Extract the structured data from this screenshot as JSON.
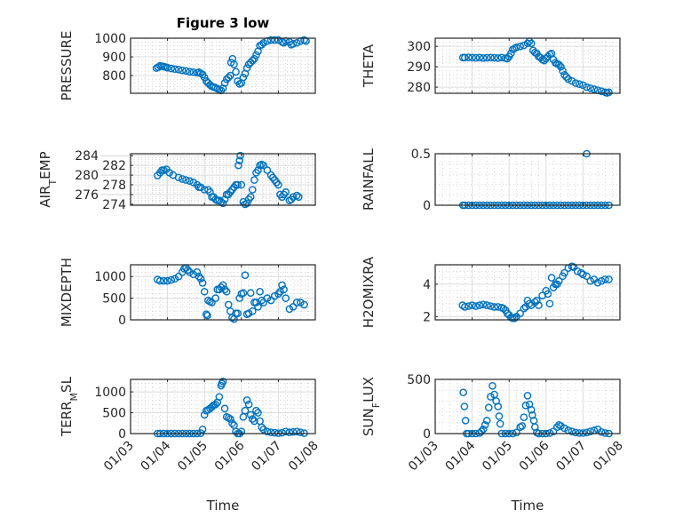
{
  "chart_data": {
    "type": "scatter",
    "title": "Figure 3 low",
    "xlabel": "Time",
    "x_unit": "day of month (January)",
    "xlim": [
      3,
      8
    ],
    "xticks": [
      3,
      4,
      5,
      6,
      7,
      8
    ],
    "xtick_labels": [
      "01/03",
      "01/04",
      "01/05",
      "01/06",
      "01/07",
      "01/08"
    ],
    "grid": "on (major + minor)",
    "marker_color": "#0072BD",
    "panels": [
      {
        "ylabel": "PRESSURE",
        "ylim": [
          705,
          1000
        ],
        "yticks": [
          800,
          900,
          1000
        ],
        "x": [
          3.7,
          3.75,
          3.8,
          3.85,
          3.9,
          3.95,
          4.0,
          4.1,
          4.2,
          4.3,
          4.4,
          4.5,
          4.6,
          4.7,
          4.8,
          4.85,
          4.9,
          4.95,
          5.0,
          5.05,
          5.1,
          5.15,
          5.2,
          5.25,
          5.3,
          5.35,
          5.4,
          5.45,
          5.5,
          5.55,
          5.6,
          5.65,
          5.7,
          5.72,
          5.76,
          5.8,
          5.85,
          5.9,
          5.95,
          6.0,
          6.05,
          6.1,
          6.15,
          6.2,
          6.25,
          6.3,
          6.35,
          6.4,
          6.45,
          6.5,
          6.55,
          6.6,
          6.7,
          6.8,
          6.9,
          7.0,
          7.1,
          7.15,
          7.2,
          7.3,
          7.35,
          7.4,
          7.5,
          7.6,
          7.7,
          7.75
        ],
        "y": [
          840,
          845,
          852,
          850,
          848,
          845,
          842,
          838,
          835,
          832,
          828,
          825,
          820,
          818,
          815,
          818,
          812,
          805,
          790,
          770,
          760,
          750,
          742,
          738,
          735,
          730,
          725,
          720,
          732,
          760,
          780,
          790,
          800,
          870,
          890,
          860,
          820,
          770,
          755,
          760,
          790,
          810,
          840,
          860,
          870,
          880,
          890,
          910,
          930,
          960,
          965,
          975,
          985,
          990,
          990,
          990,
          980,
          975,
          985,
          980,
          965,
          970,
          975,
          985,
          990,
          985
        ]
      },
      {
        "ylabel": "THETA",
        "ylim": [
          277,
          304
        ],
        "yticks": [
          280,
          290,
          300
        ],
        "x": [
          3.75,
          3.8,
          3.9,
          4.0,
          4.1,
          4.2,
          4.3,
          4.4,
          4.5,
          4.6,
          4.7,
          4.8,
          4.9,
          4.95,
          5.0,
          5.05,
          5.1,
          5.15,
          5.2,
          5.3,
          5.4,
          5.5,
          5.55,
          5.6,
          5.65,
          5.7,
          5.75,
          5.8,
          5.85,
          5.9,
          5.95,
          6.0,
          6.05,
          6.1,
          6.15,
          6.2,
          6.25,
          6.3,
          6.35,
          6.4,
          6.45,
          6.5,
          6.55,
          6.6,
          6.7,
          6.8,
          6.9,
          7.0,
          7.1,
          7.2,
          7.3,
          7.4,
          7.5,
          7.6,
          7.65,
          7.7
        ],
        "y": [
          294.5,
          294.5,
          294.6,
          294.5,
          294.4,
          294.5,
          294.3,
          294.4,
          294.5,
          294.4,
          294.3,
          294.5,
          294.2,
          294,
          295,
          296.5,
          298.5,
          299,
          299.5,
          300,
          300.5,
          301.5,
          302.5,
          301.5,
          298,
          297,
          296.5,
          295,
          294.5,
          293.5,
          293,
          294,
          295,
          296,
          296.5,
          293.5,
          292,
          291.5,
          291,
          290,
          288,
          286,
          285,
          284,
          283,
          282,
          281.5,
          281,
          280,
          279.5,
          279,
          278.5,
          278,
          277.5,
          277.2,
          277.5
        ]
      },
      {
        "ylabel": "AIR_TEMP",
        "ylim": [
          273.8,
          284.4
        ],
        "yticks": [
          274,
          276,
          278,
          280,
          282,
          284
        ],
        "x": [
          3.73,
          3.8,
          3.85,
          3.9,
          3.97,
          4.05,
          4.15,
          4.3,
          4.4,
          4.5,
          4.6,
          4.7,
          4.8,
          4.85,
          4.9,
          5.0,
          5.1,
          5.15,
          5.2,
          5.25,
          5.3,
          5.35,
          5.4,
          5.45,
          5.5,
          5.55,
          5.6,
          5.65,
          5.7,
          5.75,
          5.8,
          5.85,
          5.9,
          5.92,
          5.95,
          5.97,
          6.0,
          6.05,
          6.1,
          6.15,
          6.2,
          6.25,
          6.3,
          6.35,
          6.4,
          6.45,
          6.5,
          6.55,
          6.6,
          6.7,
          6.8,
          6.85,
          6.9,
          6.95,
          7.0,
          7.05,
          7.1,
          7.15,
          7.2,
          7.3,
          7.35,
          7.4,
          7.5,
          7.55
        ],
        "y": [
          279.9,
          280.5,
          281,
          281,
          281.2,
          280.5,
          280,
          279.5,
          279.2,
          279,
          278.8,
          278.5,
          278,
          277.5,
          277.5,
          277,
          277,
          276.5,
          275.5,
          275.5,
          275,
          274.8,
          274.8,
          274.5,
          274.2,
          275,
          276,
          276,
          276.5,
          277,
          277.5,
          278,
          278,
          282,
          283,
          284,
          278,
          274.5,
          274,
          274.2,
          275,
          275.5,
          277,
          279,
          280.5,
          281,
          282,
          282.2,
          282,
          281,
          280,
          279.5,
          279,
          278.5,
          278,
          276,
          275.5,
          276,
          276.5,
          274.8,
          275,
          275.5,
          275.8,
          275.5
        ]
      },
      {
        "ylabel": "RAINFALL",
        "ylim": [
          0,
          0.5
        ],
        "yticks": [
          0,
          0.5
        ],
        "x": [
          3.75,
          3.8,
          3.9,
          4.0,
          4.1,
          4.2,
          4.3,
          4.4,
          4.5,
          4.6,
          4.7,
          4.8,
          4.9,
          5.0,
          5.1,
          5.2,
          5.3,
          5.4,
          5.5,
          5.6,
          5.7,
          5.8,
          5.9,
          6.0,
          6.1,
          6.2,
          6.3,
          6.4,
          6.5,
          6.6,
          6.7,
          6.8,
          6.9,
          7.0,
          7.1,
          7.1,
          7.2,
          7.3,
          7.4,
          7.5,
          7.6,
          7.7
        ],
        "y": [
          0,
          0,
          0,
          0,
          0,
          0,
          0,
          0,
          0,
          0,
          0,
          0,
          0,
          0,
          0,
          0,
          0,
          0,
          0,
          0,
          0,
          0,
          0,
          0,
          0,
          0,
          0,
          0,
          0,
          0,
          0,
          0,
          0,
          0,
          0,
          0.5,
          0,
          0,
          0,
          0,
          0,
          0
        ]
      },
      {
        "ylabel": "MIXDEPTH",
        "ylim": [
          0,
          1270
        ],
        "yticks": [
          0,
          500,
          1000
        ],
        "x": [
          3.73,
          3.8,
          3.9,
          4.0,
          4.1,
          4.2,
          4.3,
          4.4,
          4.45,
          4.5,
          4.55,
          4.6,
          4.7,
          4.8,
          4.85,
          4.9,
          4.95,
          5.0,
          5.05,
          5.08,
          5.1,
          5.15,
          5.2,
          5.3,
          5.35,
          5.4,
          5.45,
          5.5,
          5.55,
          5.6,
          5.65,
          5.7,
          5.75,
          5.8,
          5.85,
          5.9,
          5.95,
          6.0,
          6.05,
          6.1,
          6.15,
          6.2,
          6.25,
          6.3,
          6.35,
          6.4,
          6.45,
          6.5,
          6.55,
          6.6,
          6.7,
          6.8,
          6.9,
          7.0,
          7.05,
          7.1,
          7.15,
          7.2,
          7.3,
          7.4,
          7.5,
          7.6,
          7.7
        ],
        "y": [
          930,
          900,
          900,
          900,
          920,
          950,
          1000,
          1100,
          1180,
          1200,
          1150,
          1100,
          1050,
          1100,
          1000,
          950,
          850,
          650,
          130,
          100,
          450,
          420,
          400,
          500,
          700,
          700,
          750,
          800,
          700,
          650,
          350,
          200,
          50,
          20,
          150,
          150,
          500,
          600,
          620,
          1030,
          130,
          150,
          620,
          200,
          400,
          400,
          300,
          650,
          450,
          400,
          500,
          450,
          550,
          600,
          650,
          800,
          700,
          500,
          250,
          300,
          400,
          400,
          350
        ]
      },
      {
        "ylabel": "H2OMIXRA",
        "ylim": [
          1.8,
          5.2
        ],
        "yticks": [
          2,
          4
        ],
        "x": [
          3.74,
          3.8,
          3.9,
          4.0,
          4.1,
          4.2,
          4.3,
          4.4,
          4.5,
          4.6,
          4.7,
          4.8,
          4.85,
          4.9,
          4.95,
          5.0,
          5.05,
          5.1,
          5.15,
          5.2,
          5.3,
          5.4,
          5.45,
          5.5,
          5.55,
          5.6,
          5.7,
          5.75,
          5.8,
          5.9,
          6.0,
          6.05,
          6.1,
          6.15,
          6.2,
          6.25,
          6.3,
          6.35,
          6.45,
          6.5,
          6.6,
          6.7,
          6.75,
          6.85,
          6.95,
          7.0,
          7.1,
          7.2,
          7.3,
          7.4,
          7.5,
          7.6,
          7.7
        ],
        "y": [
          2.7,
          2.6,
          2.65,
          2.7,
          2.65,
          2.7,
          2.75,
          2.7,
          2.65,
          2.6,
          2.6,
          2.55,
          2.5,
          2.4,
          2.2,
          2.1,
          1.95,
          1.9,
          1.9,
          2.0,
          2.2,
          2.5,
          2.6,
          3.0,
          2.8,
          2.7,
          2.9,
          3.0,
          2.7,
          3.3,
          3.6,
          3.4,
          2.8,
          4.4,
          3.8,
          4.0,
          4.0,
          4.2,
          4.5,
          4.7,
          5.0,
          5.1,
          5.05,
          4.8,
          4.7,
          4.6,
          4.5,
          4.2,
          4.3,
          4.1,
          4.2,
          4.3,
          4.3
        ]
      },
      {
        "ylabel": "TERR_MSL",
        "ylim": [
          0,
          1300
        ],
        "yticks": [
          0,
          500,
          1000
        ],
        "x": [
          3.73,
          3.8,
          3.9,
          4.0,
          4.1,
          4.2,
          4.3,
          4.4,
          4.5,
          4.6,
          4.7,
          4.8,
          4.9,
          4.95,
          5.0,
          5.05,
          5.1,
          5.15,
          5.2,
          5.25,
          5.3,
          5.35,
          5.4,
          5.45,
          5.47,
          5.5,
          5.55,
          5.6,
          5.65,
          5.7,
          5.75,
          5.8,
          5.85,
          5.9,
          5.95,
          6.0,
          6.05,
          6.1,
          6.15,
          6.2,
          6.25,
          6.3,
          6.35,
          6.4,
          6.45,
          6.5,
          6.55,
          6.6,
          6.7,
          6.8,
          6.9,
          7.0,
          7.1,
          7.2,
          7.3,
          7.4,
          7.5,
          7.6,
          7.7
        ],
        "y": [
          0,
          0,
          0,
          0,
          0,
          0,
          0,
          0,
          0,
          0,
          0,
          0,
          10,
          100,
          450,
          550,
          570,
          600,
          640,
          680,
          700,
          750,
          880,
          1150,
          1200,
          1250,
          600,
          400,
          380,
          350,
          250,
          200,
          50,
          0,
          0,
          50,
          400,
          550,
          800,
          700,
          450,
          350,
          300,
          550,
          500,
          300,
          150,
          100,
          50,
          30,
          20,
          10,
          20,
          50,
          30,
          40,
          50,
          30,
          10
        ]
      },
      {
        "ylabel": "SUN_FLUX",
        "ylim": [
          0,
          500
        ],
        "yticks": [
          0,
          500
        ],
        "x": [
          3.76,
          3.79,
          3.82,
          3.85,
          3.9,
          4.0,
          4.1,
          4.2,
          4.25,
          4.3,
          4.35,
          4.4,
          4.45,
          4.5,
          4.55,
          4.6,
          4.65,
          4.7,
          4.73,
          4.76,
          4.8,
          4.9,
          5.0,
          5.1,
          5.2,
          5.3,
          5.35,
          5.4,
          5.45,
          5.5,
          5.55,
          5.6,
          5.63,
          5.67,
          5.7,
          5.75,
          5.8,
          5.9,
          6.0,
          6.1,
          6.2,
          6.3,
          6.35,
          6.4,
          6.5,
          6.6,
          6.7,
          6.8,
          6.9,
          7.0,
          7.1,
          7.2,
          7.3,
          7.4,
          7.5,
          7.6,
          7.7
        ],
        "y": [
          380,
          250,
          120,
          0,
          0,
          0,
          0,
          5,
          20,
          40,
          80,
          120,
          240,
          340,
          440,
          360,
          300,
          250,
          160,
          90,
          0,
          0,
          0,
          0,
          10,
          60,
          70,
          150,
          260,
          350,
          270,
          220,
          170,
          120,
          60,
          10,
          0,
          0,
          0,
          5,
          20,
          60,
          80,
          70,
          50,
          30,
          20,
          10,
          5,
          5,
          10,
          20,
          30,
          40,
          15,
          5,
          0
        ]
      }
    ]
  }
}
